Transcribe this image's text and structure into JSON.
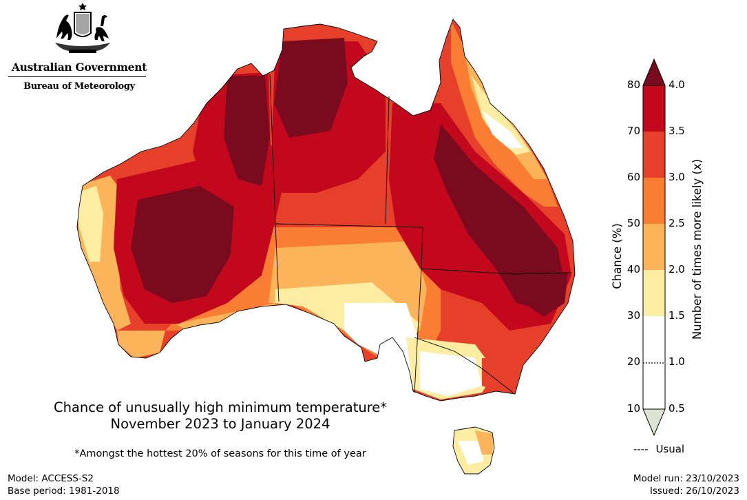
{
  "header": {
    "government": "Australian Government",
    "bureau": "Bureau of Meteorology"
  },
  "map": {
    "title_line1": "Chance of unusually high minimum temperature*",
    "title_line2": "November 2023 to January 2024",
    "footnote": "*Amongst the hottest 20% of seasons for this time of year"
  },
  "legend": {
    "left_label": "Chance (%)",
    "right_label": "Number of times more likely (x)",
    "usual_label": "Usual",
    "usual_symbol": "----",
    "chance_ticks": [
      "80",
      "70",
      "60",
      "50",
      "40",
      "30",
      "20",
      "10"
    ],
    "ratio_ticks": [
      "4.0",
      "3.5",
      "3.0",
      "2.5",
      "2.0",
      "1.5",
      "1.0",
      "0.5"
    ],
    "colors": {
      "over": "#7a0a1e",
      "b70_80": "#c3081d",
      "b60_70": "#e6402a",
      "b50_60": "#f97d32",
      "b40_50": "#fbb45a",
      "b30_40": "#fdeda3",
      "b10_30": "#ffffff",
      "under": "#dfe3d3"
    }
  },
  "footer": {
    "model": "Model: ACCESS-S2",
    "base_period": "Base period: 1981-2018",
    "model_run": "Model run: 23/10/2023",
    "issued": "Issued: 26/10/2023"
  }
}
